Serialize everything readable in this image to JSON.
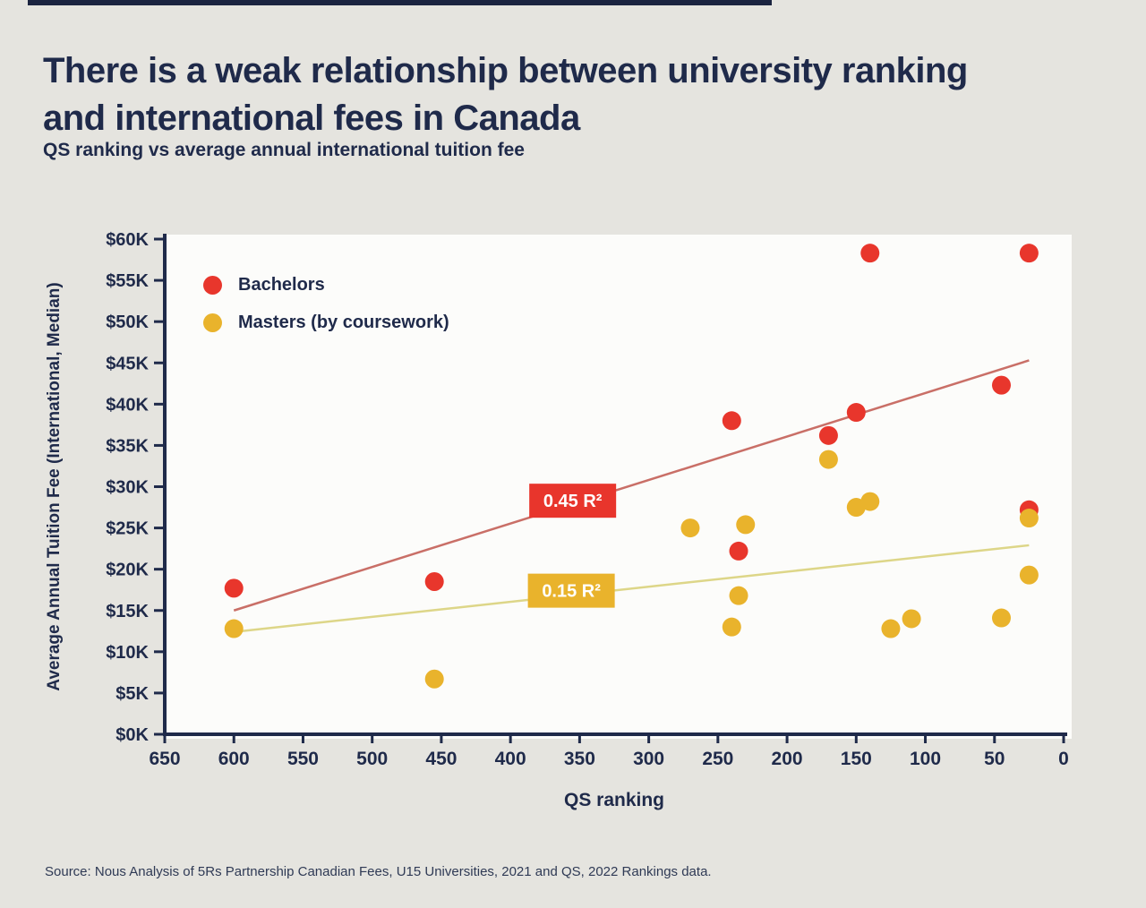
{
  "page": {
    "title_line1": "There is a weak relationship between university ranking",
    "title_line2": "and international fees in Canada",
    "subtitle": "QS ranking vs average annual international tuition fee",
    "source": "Source: Nous Analysis of 5Rs Partnership Canadian Fees, U15 Universities, 2021 and QS, 2022 Rankings data."
  },
  "colors": {
    "background": "#e5e4df",
    "plot_bg": "#fcfcfa",
    "ink": "#1f2a4a",
    "annotation_text": "#ffffff"
  },
  "chart_data": {
    "type": "scatter",
    "title": "QS ranking vs average annual international tuition fee",
    "xlabel": "QS ranking",
    "ylabel": "Average Annual Tuition Fee (International, Median)",
    "x_range": [
      650,
      0
    ],
    "y_range": [
      0,
      60
    ],
    "x_axis_reversed": true,
    "grid": false,
    "legend_position": "inside top-left",
    "x_ticks": [
      650,
      600,
      550,
      500,
      450,
      400,
      350,
      300,
      250,
      200,
      150,
      100,
      50,
      0
    ],
    "y_ticks": [
      0,
      5,
      10,
      15,
      20,
      25,
      30,
      35,
      40,
      45,
      50,
      55,
      60
    ],
    "y_tick_labels": [
      "$0K",
      "$5K",
      "$10K",
      "$15K",
      "$20K",
      "$25K",
      "$30K",
      "$35K",
      "$40K",
      "$45K",
      "$50K",
      "$55K",
      "$60K"
    ],
    "y_unit": "thousand CAD per year",
    "series": [
      {
        "id": "bachelors",
        "name": "Bachelors",
        "color": "#e8362c",
        "points": [
          [
            600,
            17.7
          ],
          [
            455,
            18.5
          ],
          [
            240,
            38.0
          ],
          [
            235,
            22.2
          ],
          [
            170,
            36.2
          ],
          [
            150,
            39.0
          ],
          [
            140,
            58.3
          ],
          [
            45,
            42.3
          ],
          [
            25,
            58.3
          ],
          [
            25,
            27.2
          ]
        ]
      },
      {
        "id": "masters",
        "name": "Masters (by coursework)",
        "color": "#e9b32c",
        "points": [
          [
            600,
            12.8
          ],
          [
            455,
            6.7
          ],
          [
            270,
            25.0
          ],
          [
            230,
            25.4
          ],
          [
            235,
            16.8
          ],
          [
            240,
            13.0
          ],
          [
            170,
            33.3
          ],
          [
            150,
            27.5
          ],
          [
            140,
            28.2
          ],
          [
            125,
            12.8
          ],
          [
            110,
            14.0
          ],
          [
            45,
            14.1
          ],
          [
            25,
            26.2
          ],
          [
            25,
            19.3
          ]
        ]
      }
    ],
    "trendlines": [
      {
        "series": "bachelors",
        "label": "0.45 R²",
        "r_squared": 0.45,
        "color": "#e8352c",
        "line_color": "#c96f67",
        "x1": 600,
        "y1": 15.0,
        "x2": 25,
        "y2": 45.3,
        "label_x": 355,
        "label_y": 28.3
      },
      {
        "series": "masters",
        "label": "0.15 R²",
        "r_squared": 0.15,
        "color": "#e9b32c",
        "line_color": "#ddd688",
        "x1": 600,
        "y1": 12.4,
        "x2": 25,
        "y2": 22.9,
        "label_x": 356,
        "label_y": 17.4
      }
    ]
  }
}
